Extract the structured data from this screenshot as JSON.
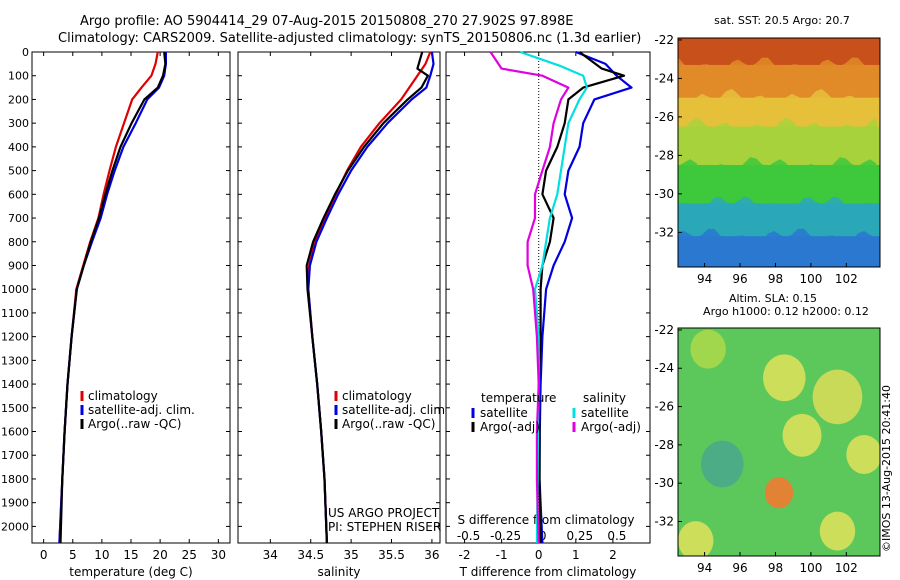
{
  "header": {
    "title_line1": "Argo profile: AO 5904414_29 07-Aug-2015 20150808_270 27.902S 97.898E",
    "title_line2": "Climatology: CARS2009. Satellite-adjusted climatology: synTS_20150806.nc (1.3d earlier)"
  },
  "watermark": "©IMOS 13-Aug-2015 20:41:40",
  "credit": {
    "line1": "US ARGO PROJECT",
    "line2": "PI: STEPHEN RISER"
  },
  "colors": {
    "climatology": "#e00000",
    "satellite": "#0000e0",
    "argo": "#000000",
    "sal_satellite": "#00e0e0",
    "sal_argo": "#e000e0"
  },
  "depth_axis": {
    "ticks": [
      0,
      100,
      200,
      300,
      400,
      500,
      600,
      700,
      800,
      900,
      1000,
      1100,
      1200,
      1300,
      1400,
      1500,
      1600,
      1700,
      1800,
      1900,
      2000
    ],
    "ylim": [
      0,
      2070
    ]
  },
  "chart_data": [
    {
      "type": "line",
      "xlabel": "temperature (deg C)",
      "xlim": [
        -2,
        32
      ],
      "xticks": [
        0,
        5,
        10,
        15,
        20,
        25,
        30
      ],
      "legend": {
        "placement": "lower-center",
        "entries": [
          "climatology",
          "satellite-adj. clim.",
          "Argo(..raw -QC)"
        ]
      },
      "series": [
        {
          "name": "climatology",
          "color": "#e00000",
          "points": [
            [
              19.6,
              0
            ],
            [
              19.2,
              50
            ],
            [
              18.5,
              100
            ],
            [
              16.8,
              150
            ],
            [
              15.2,
              200
            ],
            [
              13.8,
              300
            ],
            [
              12.4,
              400
            ],
            [
              11.3,
              500
            ],
            [
              10.3,
              600
            ],
            [
              9.4,
              700
            ],
            [
              8.0,
              800
            ],
            [
              6.8,
              900
            ],
            [
              5.6,
              1000
            ],
            [
              4.8,
              1200
            ],
            [
              4.1,
              1400
            ],
            [
              3.6,
              1600
            ],
            [
              3.2,
              1800
            ],
            [
              2.7,
              2070
            ]
          ]
        },
        {
          "name": "satellite-adj. clim.",
          "color": "#0000e0",
          "points": [
            [
              21.0,
              0
            ],
            [
              21.0,
              50
            ],
            [
              20.7,
              100
            ],
            [
              19.8,
              150
            ],
            [
              17.8,
              200
            ],
            [
              15.8,
              300
            ],
            [
              13.7,
              400
            ],
            [
              12.2,
              500
            ],
            [
              10.9,
              600
            ],
            [
              9.8,
              700
            ],
            [
              8.3,
              800
            ],
            [
              6.9,
              900
            ],
            [
              5.7,
              1000
            ],
            [
              4.8,
              1200
            ],
            [
              4.1,
              1400
            ],
            [
              3.6,
              1600
            ],
            [
              3.2,
              1800
            ],
            [
              2.7,
              2070
            ]
          ]
        },
        {
          "name": "Argo(..raw -QC)",
          "color": "#000000",
          "points": [
            [
              20.7,
              0
            ],
            [
              20.9,
              50
            ],
            [
              20.5,
              100
            ],
            [
              19.6,
              150
            ],
            [
              17.3,
              200
            ],
            [
              15.1,
              300
            ],
            [
              13.2,
              400
            ],
            [
              11.8,
              500
            ],
            [
              10.6,
              600
            ],
            [
              9.5,
              700
            ],
            [
              8.1,
              800
            ],
            [
              6.9,
              900
            ],
            [
              5.7,
              1000
            ],
            [
              4.8,
              1200
            ],
            [
              4.1,
              1400
            ],
            [
              3.6,
              1600
            ],
            [
              3.2,
              1800
            ],
            [
              2.9,
              2070
            ]
          ]
        }
      ]
    },
    {
      "type": "line",
      "xlabel": "salinity",
      "xlim": [
        33.6,
        36.1
      ],
      "xticks": [
        34,
        34.5,
        35,
        35.5,
        36
      ],
      "legend": {
        "placement": "lower-center",
        "entries": [
          "climatology",
          "satellite-adj. clim.",
          "Argo(..raw -QC)"
        ]
      },
      "series": [
        {
          "name": "climatology",
          "color": "#e00000",
          "points": [
            [
              35.98,
              0
            ],
            [
              35.92,
              50
            ],
            [
              35.82,
              100
            ],
            [
              35.62,
              200
            ],
            [
              35.35,
              300
            ],
            [
              35.12,
              400
            ],
            [
              34.95,
              500
            ],
            [
              34.81,
              600
            ],
            [
              34.68,
              700
            ],
            [
              34.55,
              800
            ],
            [
              34.48,
              900
            ],
            [
              34.47,
              1000
            ],
            [
              34.52,
              1200
            ],
            [
              34.58,
              1400
            ],
            [
              34.63,
              1600
            ],
            [
              34.67,
              1800
            ],
            [
              34.7,
              2070
            ]
          ]
        },
        {
          "name": "satellite-adj. clim.",
          "color": "#0000e0",
          "points": [
            [
              36.0,
              0
            ],
            [
              36.02,
              50
            ],
            [
              35.98,
              100
            ],
            [
              35.93,
              150
            ],
            [
              35.75,
              200
            ],
            [
              35.45,
              300
            ],
            [
              35.2,
              400
            ],
            [
              35.0,
              500
            ],
            [
              34.84,
              600
            ],
            [
              34.7,
              700
            ],
            [
              34.57,
              800
            ],
            [
              34.49,
              900
            ],
            [
              34.47,
              1000
            ],
            [
              34.52,
              1200
            ],
            [
              34.58,
              1400
            ],
            [
              34.63,
              1600
            ],
            [
              34.67,
              1800
            ],
            [
              34.7,
              2070
            ]
          ]
        },
        {
          "name": "Argo(..raw -QC)",
          "color": "#000000",
          "points": [
            [
              35.88,
              0
            ],
            [
              35.82,
              70
            ],
            [
              35.95,
              100
            ],
            [
              35.87,
              150
            ],
            [
              35.7,
              200
            ],
            [
              35.4,
              300
            ],
            [
              35.16,
              400
            ],
            [
              34.96,
              500
            ],
            [
              34.8,
              600
            ],
            [
              34.66,
              700
            ],
            [
              34.53,
              800
            ],
            [
              34.45,
              900
            ],
            [
              34.46,
              1000
            ],
            [
              34.52,
              1200
            ],
            [
              34.58,
              1400
            ],
            [
              34.63,
              1600
            ],
            [
              34.67,
              1800
            ],
            [
              34.7,
              2070
            ]
          ]
        }
      ]
    },
    {
      "type": "line",
      "xlabel": "T difference from climatology",
      "xlabel_top": "S difference from climatology",
      "xlim": [
        -2.5,
        3.0
      ],
      "xticks": [
        -2,
        -1,
        0,
        1,
        2
      ],
      "xticks_top": [
        "-0.5",
        "-0.25",
        "0",
        "0.25",
        "0.5"
      ],
      "xticks_top_pos": [
        -2,
        -1,
        0,
        1,
        2
      ],
      "legend": {
        "placement": "lower-center",
        "groups": [
          "temperature",
          "salinity"
        ],
        "entries": [
          "satellite",
          "Argo(-adj)",
          "satellite",
          "Argo(-adj)"
        ]
      },
      "series": [
        {
          "name": "satellite",
          "group": "temperature",
          "color": "#0000e0",
          "points": [
            [
              1.0,
              0
            ],
            [
              1.8,
              50
            ],
            [
              2.1,
              100
            ],
            [
              2.5,
              150
            ],
            [
              1.5,
              200
            ],
            [
              1.2,
              300
            ],
            [
              1.1,
              400
            ],
            [
              0.8,
              500
            ],
            [
              0.7,
              600
            ],
            [
              0.9,
              700
            ],
            [
              0.7,
              800
            ],
            [
              0.4,
              900
            ],
            [
              0.2,
              1000
            ],
            [
              0.1,
              1200
            ],
            [
              0.05,
              1400
            ],
            [
              0.03,
              1600
            ],
            [
              0.02,
              1800
            ],
            [
              0.1,
              2070
            ]
          ]
        },
        {
          "name": "Argo(-adj)",
          "group": "temperature",
          "color": "#000000",
          "points": [
            [
              1.1,
              0
            ],
            [
              1.7,
              70
            ],
            [
              2.3,
              100
            ],
            [
              1.2,
              150
            ],
            [
              0.8,
              200
            ],
            [
              0.7,
              300
            ],
            [
              0.5,
              400
            ],
            [
              0.2,
              500
            ],
            [
              0.1,
              600
            ],
            [
              0.4,
              700
            ],
            [
              0.3,
              800
            ],
            [
              0.1,
              900
            ],
            [
              0.05,
              1000
            ],
            [
              0.05,
              1200
            ],
            [
              0.0,
              1400
            ],
            [
              0.02,
              1600
            ],
            [
              0.02,
              1800
            ],
            [
              0.05,
              2070
            ]
          ]
        },
        {
          "name": "satellite",
          "group": "salinity",
          "color": "#00e0e0",
          "points": [
            [
              -0.5,
              0
            ],
            [
              0.6,
              60
            ],
            [
              1.2,
              100
            ],
            [
              1.3,
              150
            ],
            [
              1.1,
              200
            ],
            [
              0.8,
              300
            ],
            [
              0.7,
              400
            ],
            [
              0.6,
              500
            ],
            [
              0.5,
              600
            ],
            [
              0.3,
              700
            ],
            [
              0.2,
              800
            ],
            [
              0.1,
              900
            ],
            [
              -0.1,
              1000
            ],
            [
              0.0,
              1200
            ],
            [
              0.0,
              1400
            ],
            [
              -0.02,
              1600
            ],
            [
              -0.03,
              1800
            ],
            [
              -0.05,
              2070
            ]
          ]
        },
        {
          "name": "Argo(-adj)",
          "group": "salinity",
          "color": "#e000e0",
          "points": [
            [
              -1.3,
              0
            ],
            [
              -1.0,
              70
            ],
            [
              0.1,
              100
            ],
            [
              0.8,
              150
            ],
            [
              0.6,
              200
            ],
            [
              0.4,
              300
            ],
            [
              0.3,
              400
            ],
            [
              0.1,
              500
            ],
            [
              -0.1,
              600
            ],
            [
              -0.1,
              700
            ],
            [
              -0.3,
              800
            ],
            [
              -0.3,
              900
            ],
            [
              -0.15,
              1000
            ],
            [
              -0.05,
              1200
            ],
            [
              0.0,
              1400
            ],
            [
              -0.05,
              1600
            ],
            [
              -0.05,
              1800
            ],
            [
              0.0,
              2070
            ]
          ]
        }
      ]
    },
    {
      "type": "heatmap",
      "title": "sat. SST: 20.5 Argo: 20.7",
      "xlim": [
        92.5,
        103.9
      ],
      "ylim": [
        -33.8,
        -21.9
      ],
      "xticks": [
        94,
        96,
        98,
        100,
        102
      ],
      "yticks": [
        -22,
        -24,
        -26,
        -28,
        -30,
        -32
      ],
      "color_bands": [
        {
          "lat_from": -21.9,
          "lat_to": -23.3,
          "color": "#c8501a"
        },
        {
          "lat_from": -23.3,
          "lat_to": -25.0,
          "color": "#e08a28"
        },
        {
          "lat_from": -25.0,
          "lat_to": -26.5,
          "color": "#e6c03a"
        },
        {
          "lat_from": -26.5,
          "lat_to": -28.5,
          "color": "#a8d23c"
        },
        {
          "lat_from": -28.5,
          "lat_to": -30.5,
          "color": "#3ec83c"
        },
        {
          "lat_from": -30.5,
          "lat_to": -32.2,
          "color": "#2aa8b8"
        },
        {
          "lat_from": -32.2,
          "lat_to": -33.8,
          "color": "#2a78d0"
        }
      ]
    },
    {
      "type": "heatmap",
      "title": "Altim. SLA: 0.15",
      "subtitle": "Argo h1000: 0.12 h2000: 0.12",
      "xlim": [
        92.5,
        103.9
      ],
      "ylim": [
        -33.8,
        -21.9
      ],
      "xticks": [
        94,
        96,
        98,
        100,
        102
      ],
      "yticks": [
        -22,
        -24,
        -26,
        -28,
        -30,
        -32
      ],
      "base_color": "#5cc85c",
      "features": [
        {
          "lon": 98.5,
          "lat": -24.5,
          "r": 1.2,
          "color": "#d8e05a"
        },
        {
          "lon": 101.5,
          "lat": -25.5,
          "r": 1.4,
          "color": "#d4dc58"
        },
        {
          "lon": 99.5,
          "lat": -27.5,
          "r": 1.1,
          "color": "#d8e05a"
        },
        {
          "lon": 103.0,
          "lat": -28.5,
          "r": 1.0,
          "color": "#d8e05a"
        },
        {
          "lon": 98.2,
          "lat": -30.5,
          "r": 0.8,
          "color": "#f07a30"
        },
        {
          "lon": 94.2,
          "lat": -23.0,
          "r": 1.0,
          "color": "#a8d84a"
        },
        {
          "lon": 95.0,
          "lat": -29.0,
          "r": 1.2,
          "color": "#4aa88a"
        },
        {
          "lon": 101.5,
          "lat": -32.5,
          "r": 1.0,
          "color": "#d8e05a"
        },
        {
          "lon": 93.5,
          "lat": -33.0,
          "r": 1.0,
          "color": "#d8e05a"
        }
      ]
    }
  ]
}
